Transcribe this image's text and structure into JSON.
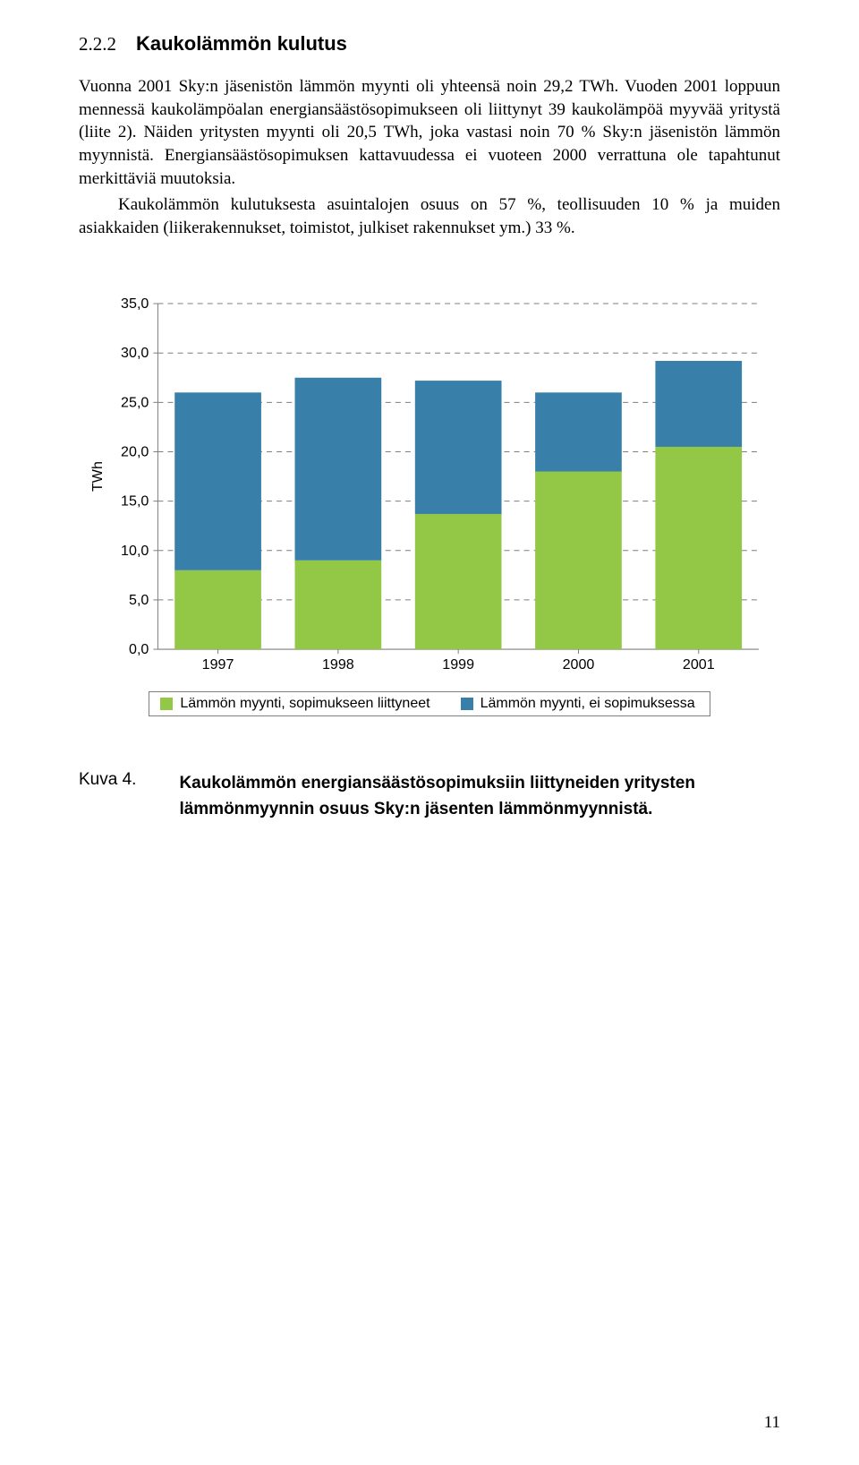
{
  "section": {
    "number": "2.2.2",
    "title": "Kaukolämmön kulutus"
  },
  "paragraphs": {
    "p1": "Vuonna 2001 Sky:n jäsenistön lämmön myynti oli yhteensä noin 29,2 TWh. Vuoden 2001 loppuun mennessä kaukolämpöalan energiansäästösopimukseen oli liittynyt 39 kaukolämpöä myyvää yritystä (liite 2). Näiden yritysten myynti oli 20,5 TWh, joka vastasi noin 70 % Sky:n jäsenistön lämmön myynnistä. Energiansäästösopimuksen kattavuudessa ei vuoteen 2000 verrattuna ole tapahtunut merkittäviä muutoksia.",
    "p2": "Kaukolämmön kulutuksesta asuintalojen osuus on 57 %, teollisuuden 10 % ja muiden asiakkaiden (liikerakennukset, toimistot, julkiset rakennukset ym.) 33 %."
  },
  "chart": {
    "type": "stacked-bar",
    "categories": [
      "1997",
      "1998",
      "1999",
      "2000",
      "2001"
    ],
    "series": [
      {
        "name": "Lämmön myynti, sopimukseen liittyneet",
        "color": "#92c846",
        "values": [
          8.0,
          9.0,
          13.7,
          18.0,
          20.5
        ]
      },
      {
        "name": "Lämmön myynti, ei sopimuksessa",
        "color": "#3880a9",
        "values": [
          18.0,
          18.5,
          13.5,
          8.0,
          8.7
        ]
      }
    ],
    "ylabel": "TWh",
    "ylim": [
      0,
      35
    ],
    "ytick_step": 5,
    "ytick_labels": [
      "0,0",
      "5,0",
      "10,0",
      "15,0",
      "20,0",
      "25,0",
      "30,0",
      "35,0"
    ],
    "grid_color": "#7f7f7f",
    "axis_color": "#7f7f7f",
    "background_color": "#ffffff",
    "bar_gap_ratio": 0.28,
    "label_fontsize": 16,
    "tick_fontsize": 16
  },
  "caption": {
    "label": "Kuva 4.",
    "text": "Kaukolämmön energiansäästösopimuksiin liittyneiden yritysten lämmönmyynnin osuus Sky:n jäsenten lämmönmyynnistä."
  },
  "page_number": "11"
}
